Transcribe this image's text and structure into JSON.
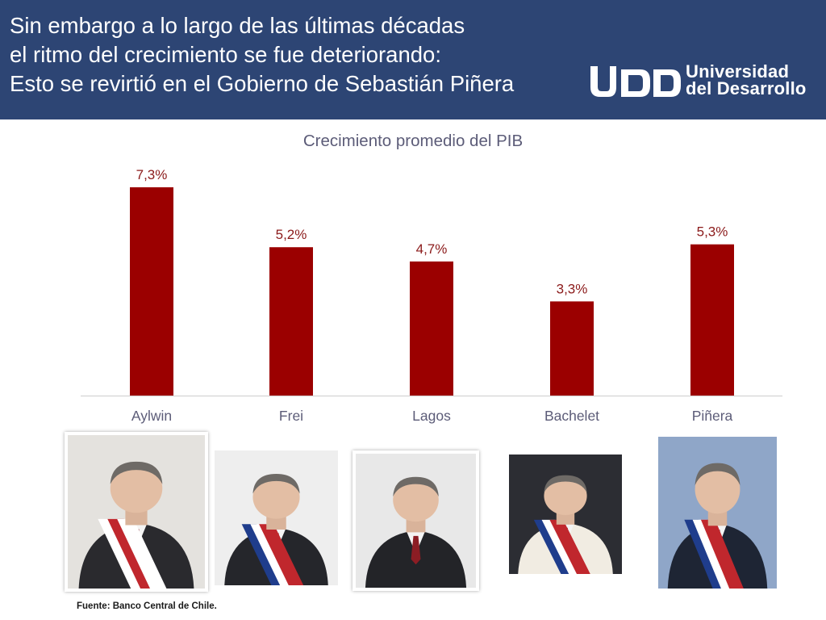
{
  "header": {
    "lines": [
      "Sin embargo a lo largo de las últimas décadas",
      "el ritmo del crecimiento se fue deteriorando:",
      "Esto se revirtió en el Gobierno de Sebastián Piñera"
    ],
    "logo": {
      "mark": "UDD",
      "line1": "Universidad",
      "line2": "del Desarrollo"
    }
  },
  "chart_data": {
    "type": "bar",
    "title": "Crecimiento promedio del PIB",
    "xlabel": "",
    "ylabel": "",
    "categories": [
      "Aylwin",
      "Frei",
      "Lagos",
      "Bachelet",
      "Piñera"
    ],
    "values": [
      7.3,
      5.2,
      4.7,
      3.3,
      5.3
    ],
    "data_labels": [
      "7,3%",
      "5,2%",
      "4,7%",
      "3,3%",
      "5,3%"
    ],
    "ylim": [
      0,
      7.3
    ],
    "grid": false,
    "legend": "none",
    "colors": {
      "bar": "#9b0000",
      "label": "#8b1a1a",
      "category": "#5c5c78",
      "axis": "#d9d9d9"
    }
  },
  "photos": [
    {
      "subject": "Aylwin",
      "bg": "#e4e2de",
      "suit": "#2a2a2e",
      "sash": [
        "#ffffff",
        "#c0272d",
        "#ffffff"
      ]
    },
    {
      "subject": "Frei",
      "bg": "#eeeeee",
      "suit": "#25262b",
      "sash": [
        "#1f3d8c",
        "#ffffff",
        "#c0272d"
      ]
    },
    {
      "subject": "Lagos",
      "bg": "#e8e8e8",
      "suit": "#232428",
      "sash": []
    },
    {
      "subject": "Bachelet",
      "bg": "#2c2d33",
      "suit": "#f1ece2",
      "sash": [
        "#1f3d8c",
        "#ffffff",
        "#c0272d"
      ]
    },
    {
      "subject": "Piñera",
      "bg": "#8fa6c8",
      "suit": "#1e2534",
      "sash": [
        "#1f3d8c",
        "#ffffff",
        "#c0272d"
      ]
    }
  ],
  "source": "Fuente: Banco Central de Chile."
}
